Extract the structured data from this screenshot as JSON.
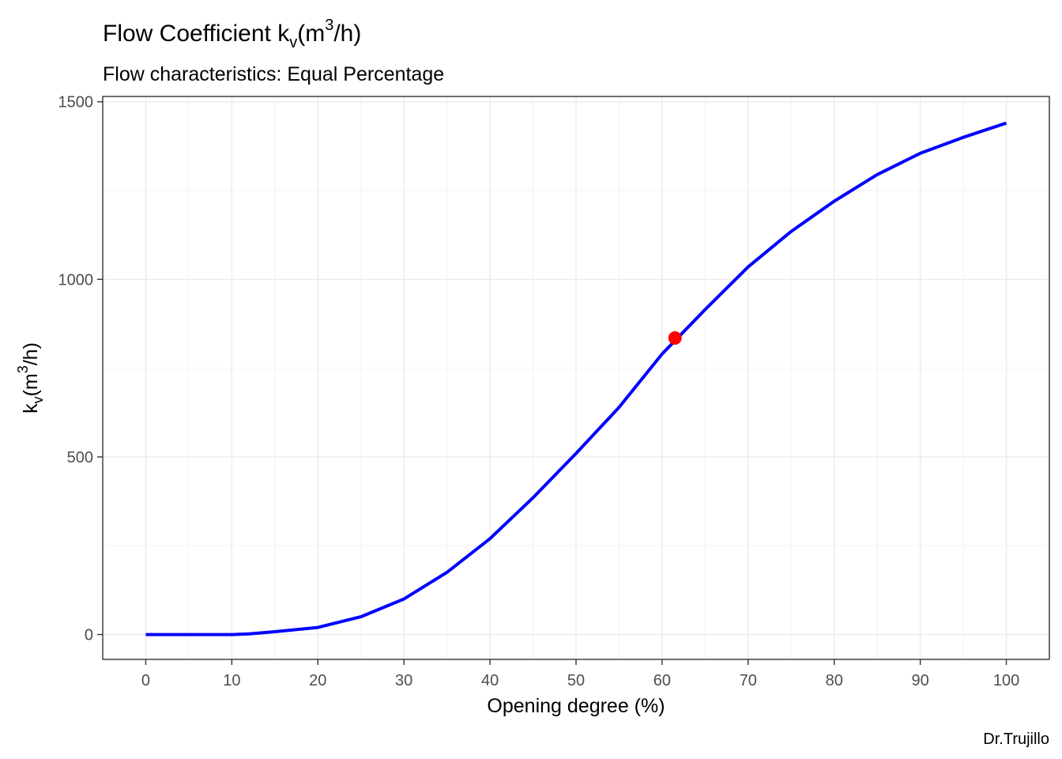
{
  "chart_data": {
    "type": "line",
    "title": {
      "prefix": "Flow Coefficient k",
      "sub": "v",
      "mid": "(m",
      "sup": "3",
      "suffix": "/h)"
    },
    "subtitle": "Flow characteristics:  Equal Percentage",
    "xlabel": "Opening degree (%)",
    "ylabel": {
      "prefix": "k",
      "sub": "v",
      "mid": "(m",
      "sup": "3",
      "suffix": "/h)"
    },
    "caption": "Dr.Trujillo",
    "xlim": [
      -5,
      105
    ],
    "ylim": [
      -70,
      1515
    ],
    "xticks": [
      0,
      10,
      20,
      30,
      40,
      50,
      60,
      70,
      80,
      90,
      100
    ],
    "xtick_labels": [
      "0",
      "10",
      "20",
      "30",
      "40",
      "50",
      "60",
      "70",
      "80",
      "90",
      "100"
    ],
    "yticks": [
      0,
      500,
      1000,
      1500
    ],
    "ytick_labels": [
      "0",
      "500",
      "1000",
      "1500"
    ],
    "grid": true,
    "series": [
      {
        "color": "#0000ff",
        "x": [
          0,
          5,
          10,
          12,
          15,
          20,
          25,
          30,
          35,
          40,
          45,
          50,
          55,
          60,
          65,
          70,
          75,
          80,
          85,
          90,
          95,
          100
        ],
        "y": [
          0,
          0,
          0,
          2,
          8,
          20,
          50,
          100,
          175,
          270,
          385,
          510,
          640,
          790,
          915,
          1035,
          1135,
          1220,
          1295,
          1355,
          1400,
          1440
        ]
      }
    ],
    "highlight_point": {
      "x": 61.5,
      "y": 835,
      "color": "#ff0000"
    }
  }
}
